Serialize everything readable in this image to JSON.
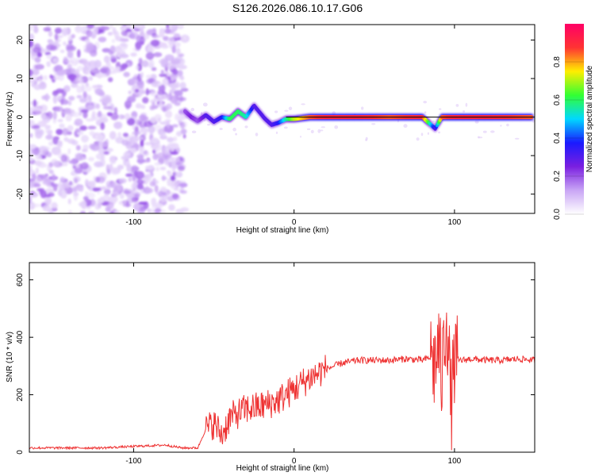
{
  "title": "S126.2026.086.10.17.G06",
  "chart_data": [
    {
      "type": "heatmap",
      "xlabel": "Height of straight line (km)",
      "ylabel": "Frequency (Hz)",
      "xlim": [
        -165,
        150
      ],
      "ylim": [
        -25,
        24
      ],
      "xticks": [
        -100,
        0,
        100
      ],
      "yticks": [
        -20,
        -10,
        0,
        10,
        20
      ],
      "colorbar": {
        "label": "Normalized spectral amplitude",
        "range": [
          0,
          1
        ],
        "ticks": [
          "0.0",
          "0.2",
          "0.4",
          "0.6",
          "0.8"
        ],
        "colors": [
          "#ffffff",
          "#c9a6f5",
          "#7a1fe0",
          "#1a1aff",
          "#00d8ff",
          "#33ff33",
          "#ffee00",
          "#ff3333",
          "#ff0066"
        ]
      },
      "noise_region_x": [
        -165,
        -68
      ],
      "ridge": {
        "x": [
          -68,
          -64,
          -60,
          -55,
          -50,
          -45,
          -40,
          -35,
          -30,
          -25,
          -22,
          -18,
          -14,
          -10,
          -5,
          0,
          10,
          20,
          40,
          60,
          80,
          88,
          92,
          100,
          120,
          148
        ],
        "freq": [
          1.5,
          0,
          -1,
          0.5,
          -1.2,
          0,
          -0.5,
          1.5,
          0,
          3,
          1.5,
          -0.5,
          -2,
          -1.5,
          -0.5,
          -0.5,
          0,
          0,
          0,
          0,
          0,
          -3,
          0,
          0,
          0,
          0
        ],
        "amp": [
          0.2,
          0.25,
          0.2,
          0.3,
          0.3,
          0.35,
          0.6,
          0.6,
          0.55,
          0.3,
          0.3,
          0.3,
          0.3,
          0.35,
          0.55,
          0.7,
          0.85,
          0.9,
          0.9,
          0.85,
          0.9,
          0.3,
          0.85,
          0.9,
          0.9,
          0.85
        ]
      }
    },
    {
      "type": "line",
      "xlabel": "Height of straight line (km)",
      "ylabel": "SNR (10 * v/v)",
      "xlim": [
        -165,
        150
      ],
      "ylim": [
        0,
        660
      ],
      "xticks": [
        -100,
        0,
        100
      ],
      "yticks": [
        0,
        200,
        400,
        600
      ],
      "color": "#ee3333",
      "x": [
        -165,
        -140,
        -120,
        -100,
        -80,
        -70,
        -60,
        -55,
        -50,
        -45,
        -40,
        -30,
        -20,
        -10,
        0,
        10,
        20,
        30,
        40,
        50,
        60,
        70,
        80,
        85,
        88,
        90,
        92,
        95,
        98,
        100,
        105,
        110,
        120,
        130,
        140,
        150
      ],
      "y": [
        15,
        15,
        15,
        20,
        25,
        15,
        15,
        80,
        100,
        60,
        120,
        150,
        160,
        180,
        220,
        260,
        290,
        310,
        320,
        320,
        320,
        325,
        320,
        330,
        300,
        380,
        250,
        500,
        150,
        320,
        320,
        325,
        320,
        320,
        325,
        320
      ]
    }
  ]
}
